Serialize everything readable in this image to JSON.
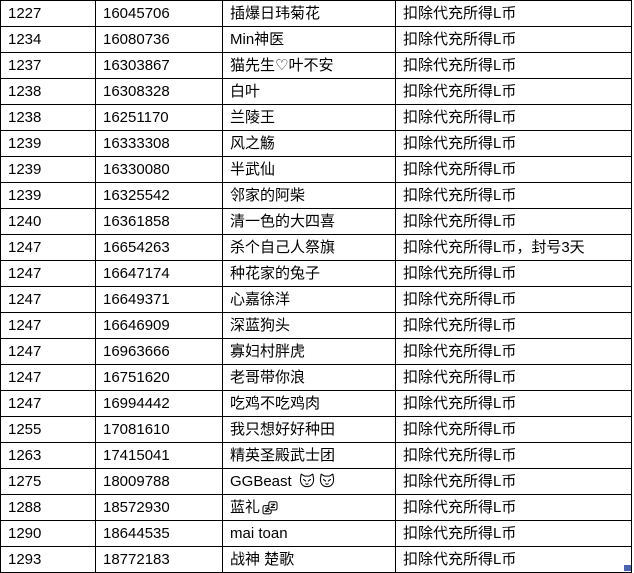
{
  "table": {
    "rows": [
      {
        "seq": "1227",
        "uid": "16045706",
        "name": "插爆日玮菊花",
        "action": "扣除代充所得L币"
      },
      {
        "seq": "1234",
        "uid": "16080736",
        "name": "Min神医",
        "action": "扣除代充所得L币"
      },
      {
        "seq": "1237",
        "uid": "16303867",
        "name": "猫先生♡叶不安",
        "action": "扣除代充所得L币"
      },
      {
        "seq": "1238",
        "uid": "16308328",
        "name": "白叶",
        "action": "扣除代充所得L币"
      },
      {
        "seq": "1238",
        "uid": "16251170",
        "name": "兰陵王",
        "action": "扣除代充所得L币"
      },
      {
        "seq": "1239",
        "uid": "16333308",
        "name": "风之觞",
        "action": "扣除代充所得L币"
      },
      {
        "seq": "1239",
        "uid": "16330080",
        "name": "半武仙",
        "action": "扣除代充所得L币"
      },
      {
        "seq": "1239",
        "uid": "16325542",
        "name": "邻家的阿柴",
        "action": "扣除代充所得L币"
      },
      {
        "seq": "1240",
        "uid": "16361858",
        "name": "清一色的大四喜",
        "action": "扣除代充所得L币"
      },
      {
        "seq": "1247",
        "uid": "16654263",
        "name": "杀个自己人祭旗",
        "action": "扣除代充所得L币，封号3天"
      },
      {
        "seq": "1247",
        "uid": "16647174",
        "name": "种花家的兔子",
        "action": "扣除代充所得L币"
      },
      {
        "seq": "1247",
        "uid": "16649371",
        "name": "心嘉徐洋",
        "action": "扣除代充所得L币"
      },
      {
        "seq": "1247",
        "uid": "16646909",
        "name": "深蓝狗头",
        "action": "扣除代充所得L币"
      },
      {
        "seq": "1247",
        "uid": "16963666",
        "name": "寡妇村胖虎",
        "action": "扣除代充所得L币"
      },
      {
        "seq": "1247",
        "uid": "16751620",
        "name": "老哥带你浪",
        "action": "扣除代充所得L币"
      },
      {
        "seq": "1247",
        "uid": "16994442",
        "name": "吃鸡不吃鸡肉",
        "action": "扣除代充所得L币"
      },
      {
        "seq": "1255",
        "uid": "17081610",
        "name": "我只想好好种田",
        "action": "扣除代充所得L币"
      },
      {
        "seq": "1263",
        "uid": "17415041",
        "name": "精英圣殿武士团",
        "action": "扣除代充所得L币"
      },
      {
        "seq": "1275",
        "uid": "18009788",
        "name": "GGBeast ",
        "name_icons": [
          "cat-face-icon",
          "cat-face-icon"
        ],
        "action": "扣除代充所得L币"
      },
      {
        "seq": "1288",
        "uid": "18572930",
        "name": "蓝礼",
        "name_icons": [
          "sleep-zz-icon"
        ],
        "action": "扣除代充所得L币"
      },
      {
        "seq": "1290",
        "uid": "18644535",
        "name": "mai toan",
        "action": "扣除代充所得L币"
      },
      {
        "seq": "1293",
        "uid": "18772183",
        "name": "战神 楚歌",
        "action": "扣除代充所得L币"
      }
    ]
  },
  "colors": {
    "grid_border": "#000000",
    "text": "#000000",
    "background": "#ffffff",
    "fill_handle": "#4a64ad"
  }
}
